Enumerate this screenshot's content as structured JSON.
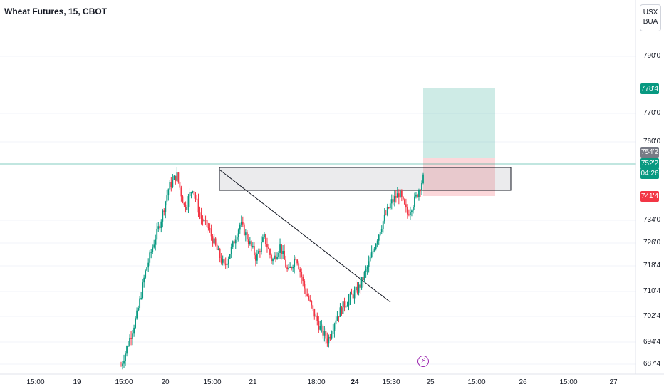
{
  "header": {
    "title": "Wheat Futures, 15, CBOT"
  },
  "currency_button": {
    "line1": "USX",
    "line2": "BUA"
  },
  "colors": {
    "up": "#089981",
    "down": "#f23645",
    "grid": "#f0f3fa",
    "target": "#089981",
    "stop": "#f23645",
    "current": "#089981"
  },
  "chart_data": {
    "type": "candlestick",
    "title": "Wheat Futures, 15, CBOT",
    "yticks": [
      {
        "label": "790'0",
        "value": 790
      },
      {
        "label": "770'0",
        "value": 770
      },
      {
        "label": "760'0",
        "value": 760
      },
      {
        "label": "734'0",
        "value": 734
      },
      {
        "label": "726'0",
        "value": 726
      },
      {
        "label": "718'4",
        "value": 718.5
      },
      {
        "label": "710'4",
        "value": 710.5
      },
      {
        "label": "702'4",
        "value": 702.5
      },
      {
        "label": "694'4",
        "value": 694.5
      },
      {
        "label": "687'4",
        "value": 687.5
      }
    ],
    "xticks": [
      {
        "label": "15:00",
        "bold": false
      },
      {
        "label": "19",
        "bold": false
      },
      {
        "label": "15:00",
        "bold": false
      },
      {
        "label": "20",
        "bold": false
      },
      {
        "label": "15:00",
        "bold": false
      },
      {
        "label": "21",
        "bold": false
      },
      {
        "label": "18:00",
        "bold": false
      },
      {
        "label": "24",
        "bold": true
      },
      {
        "label": "15:30",
        "bold": false
      },
      {
        "label": "25",
        "bold": false
      },
      {
        "label": "15:00",
        "bold": false
      },
      {
        "label": "26",
        "bold": false
      },
      {
        "label": "15:00",
        "bold": false
      },
      {
        "label": "27",
        "bold": false
      }
    ],
    "price_labels": {
      "target": "778'4",
      "last_high": "754'2",
      "current": "752'2",
      "countdown": "04:26",
      "stop": "741'4"
    },
    "price_path": [
      687,
      695,
      703,
      716,
      725,
      734,
      745,
      749,
      738,
      745,
      735,
      731,
      724,
      718,
      725,
      733,
      727,
      721,
      728,
      720,
      725,
      716,
      722,
      712,
      705,
      699,
      695,
      702,
      706,
      709,
      712,
      718,
      726,
      734,
      740,
      743,
      736,
      741,
      748
    ],
    "horizontal_zone": {
      "top": 749.5,
      "bottom": 743.5
    },
    "trendline": {
      "from": 749.5,
      "to": 708
    },
    "position": {
      "target": 778.5,
      "entry": 750,
      "stop": 741.5
    }
  }
}
